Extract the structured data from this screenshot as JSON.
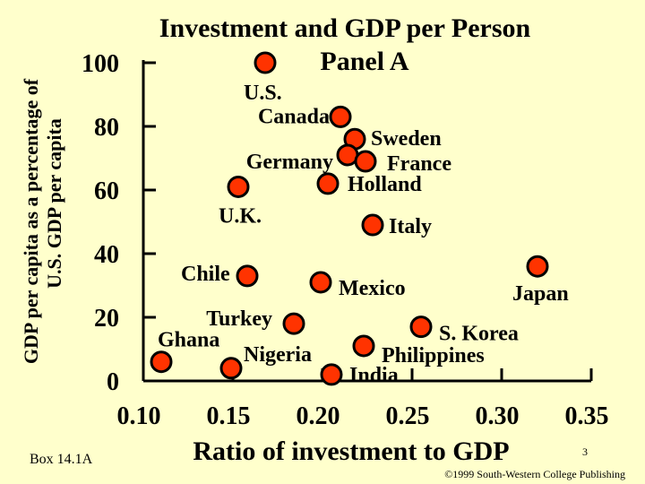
{
  "chart_data": {
    "type": "scatter",
    "title": "Investment and GDP per Person",
    "subtitle": "Panel A",
    "xlabel": "Ratio of investment to GDP",
    "ylabel_line1": "GDP per capita as a percentage of",
    "ylabel_line2": "U.S. GDP per capita",
    "xlim": [
      0.1,
      0.35
    ],
    "ylim": [
      0,
      100
    ],
    "x_ticks": [
      "0.10",
      "0.15",
      "0.20",
      "0.25",
      "0.30",
      "0.35"
    ],
    "y_ticks": [
      "0",
      "20",
      "40",
      "60",
      "80",
      "100"
    ],
    "grid": false,
    "points": [
      {
        "label": "U.S.",
        "x": 0.168,
        "y": 100
      },
      {
        "label": "Canada",
        "x": 0.21,
        "y": 83
      },
      {
        "label": "Sweden",
        "x": 0.218,
        "y": 76
      },
      {
        "label": "Germany",
        "x": 0.214,
        "y": 71
      },
      {
        "label": "France",
        "x": 0.224,
        "y": 69
      },
      {
        "label": "Holland",
        "x": 0.203,
        "y": 62
      },
      {
        "label": "U.K.",
        "x": 0.153,
        "y": 61
      },
      {
        "label": "Italy",
        "x": 0.228,
        "y": 49
      },
      {
        "label": "Japan",
        "x": 0.32,
        "y": 36
      },
      {
        "label": "Chile",
        "x": 0.158,
        "y": 33
      },
      {
        "label": "Mexico",
        "x": 0.199,
        "y": 31
      },
      {
        "label": "Turkey",
        "x": 0.184,
        "y": 18
      },
      {
        "label": "S. Korea",
        "x": 0.255,
        "y": 17
      },
      {
        "label": "Philippines",
        "x": 0.223,
        "y": 11
      },
      {
        "label": "Ghana",
        "x": 0.11,
        "y": 6
      },
      {
        "label": "Nigeria",
        "x": 0.149,
        "y": 4
      },
      {
        "label": "India",
        "x": 0.205,
        "y": 2
      }
    ]
  },
  "footer": {
    "box_label": "Box 14.1A",
    "page_number": "3",
    "copyright": "©1999 South-Western College Publishing"
  }
}
